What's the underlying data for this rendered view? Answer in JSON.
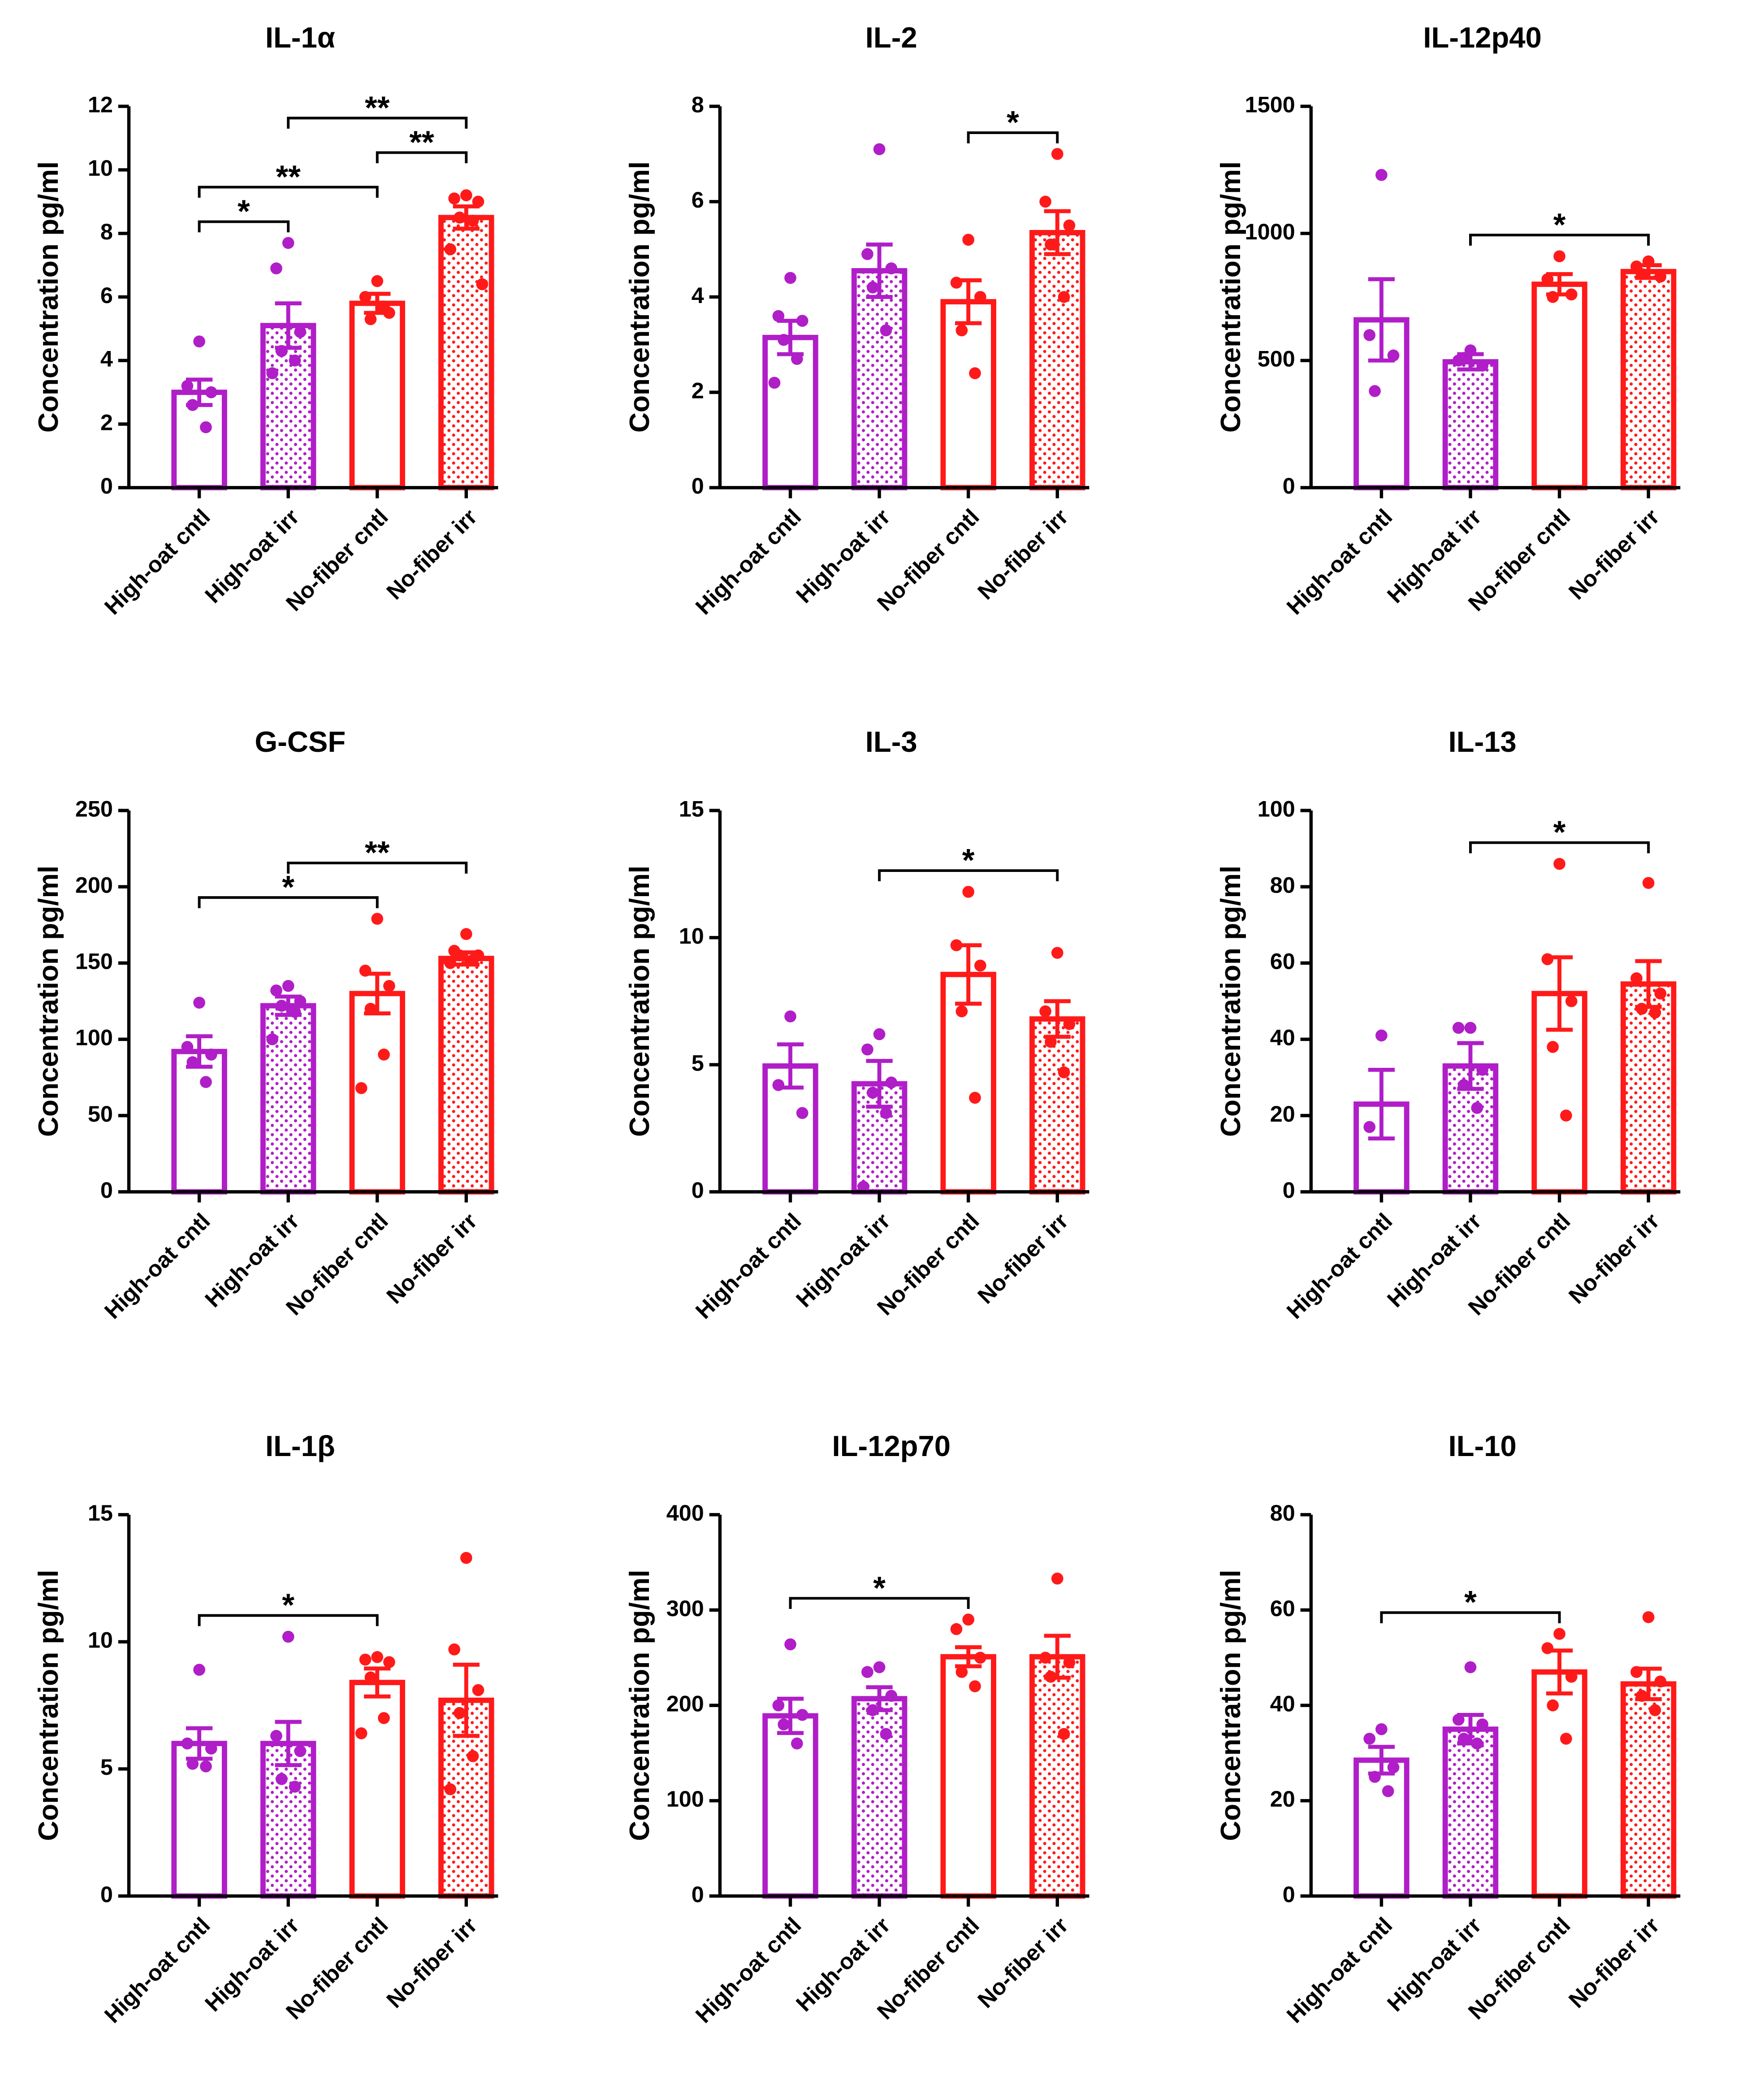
{
  "chart_data": [
    {
      "type": "bar",
      "title": "IL-1α",
      "ylabel": "Concentration pg/ml",
      "categories": [
        "High-oat cntl",
        "High-oat irr",
        "No-fiber cntl",
        "No-fiber irr"
      ],
      "values": [
        3.0,
        5.1,
        5.8,
        8.5
      ],
      "errors": [
        0.4,
        0.7,
        0.3,
        0.35
      ],
      "points": [
        [
          4.6,
          3.2,
          3.0,
          2.6,
          1.9
        ],
        [
          7.7,
          6.9,
          4.9,
          4.3,
          4.0,
          3.6
        ],
        [
          6.5,
          6.0,
          5.5,
          5.3,
          5.7
        ],
        [
          9.2,
          9.1,
          9.0,
          8.5,
          8.4,
          7.5,
          6.4
        ]
      ],
      "colors": [
        "#b01ec8",
        "#b01ec8",
        "#ff1a1a",
        "#ff1a1a"
      ],
      "dotted": [
        false,
        true,
        false,
        true
      ],
      "ylim": [
        0,
        12
      ],
      "yticks": [
        0,
        2,
        4,
        6,
        8,
        10,
        12
      ],
      "significance": [
        {
          "from": 0,
          "to": 1,
          "label": "*"
        },
        {
          "from": 0,
          "to": 2,
          "label": "**"
        },
        {
          "from": 2,
          "to": 3,
          "label": "**"
        },
        {
          "from": 1,
          "to": 3,
          "label": "**"
        }
      ]
    },
    {
      "type": "bar",
      "title": "IL-2",
      "ylabel": "Concentration pg/ml",
      "categories": [
        "High-oat cntl",
        "High-oat irr",
        "No-fiber cntl",
        "No-fiber irr"
      ],
      "values": [
        3.15,
        4.55,
        3.9,
        5.35
      ],
      "errors": [
        0.35,
        0.55,
        0.45,
        0.45
      ],
      "points": [
        [
          4.4,
          3.6,
          3.5,
          3.1,
          2.7,
          2.2
        ],
        [
          7.1,
          4.9,
          4.6,
          4.2,
          3.3
        ],
        [
          5.2,
          4.3,
          4.0,
          3.3,
          2.4
        ],
        [
          7.0,
          6.0,
          5.5,
          5.1,
          4.0
        ]
      ],
      "colors": [
        "#b01ec8",
        "#b01ec8",
        "#ff1a1a",
        "#ff1a1a"
      ],
      "dotted": [
        false,
        true,
        false,
        true
      ],
      "ylim": [
        0,
        8
      ],
      "yticks": [
        0,
        2,
        4,
        6,
        8
      ],
      "significance": [
        {
          "from": 2,
          "to": 3,
          "label": "*"
        }
      ]
    },
    {
      "type": "bar",
      "title": "IL-12p40",
      "ylabel": "Concentration pg/ml",
      "categories": [
        "High-oat cntl",
        "High-oat irr",
        "No-fiber cntl",
        "No-fiber irr"
      ],
      "values": [
        660,
        495,
        800,
        850
      ],
      "errors": [
        160,
        30,
        40,
        25
      ],
      "points": [
        [
          1230,
          600,
          520,
          380
        ],
        [
          540,
          500,
          480,
          510
        ],
        [
          910,
          820,
          760,
          750
        ],
        [
          890,
          870,
          830,
          840
        ]
      ],
      "colors": [
        "#b01ec8",
        "#b01ec8",
        "#ff1a1a",
        "#ff1a1a"
      ],
      "dotted": [
        false,
        true,
        false,
        true
      ],
      "ylim": [
        0,
        1500
      ],
      "yticks": [
        0,
        500,
        1000,
        1500
      ],
      "significance": [
        {
          "from": 1,
          "to": 3,
          "label": "*"
        }
      ]
    },
    {
      "type": "bar",
      "title": "G-CSF",
      "ylabel": "Concentration pg/ml",
      "categories": [
        "High-oat cntl",
        "High-oat irr",
        "No-fiber cntl",
        "No-fiber irr"
      ],
      "values": [
        92,
        122,
        130,
        153
      ],
      "errors": [
        10,
        6,
        13,
        4
      ],
      "points": [
        [
          124,
          95,
          90,
          85,
          72
        ],
        [
          135,
          132,
          125,
          122,
          118,
          100
        ],
        [
          179,
          145,
          135,
          120,
          90,
          68
        ],
        [
          169,
          158,
          155,
          155,
          152,
          150
        ]
      ],
      "colors": [
        "#b01ec8",
        "#b01ec8",
        "#ff1a1a",
        "#ff1a1a"
      ],
      "dotted": [
        false,
        true,
        false,
        true
      ],
      "ylim": [
        0,
        250
      ],
      "yticks": [
        0,
        50,
        100,
        150,
        200,
        250
      ],
      "significance": [
        {
          "from": 0,
          "to": 2,
          "label": "*"
        },
        {
          "from": 1,
          "to": 3,
          "label": "**"
        }
      ]
    },
    {
      "type": "bar",
      "title": "IL-3",
      "ylabel": "Concentration pg/ml",
      "categories": [
        "High-oat cntl",
        "High-oat irr",
        "No-fiber cntl",
        "No-fiber irr"
      ],
      "values": [
        4.95,
        4.25,
        8.55,
        6.8
      ],
      "errors": [
        0.85,
        0.9,
        1.15,
        0.7
      ],
      "points": [
        [
          6.9,
          4.2,
          3.1
        ],
        [
          6.2,
          5.6,
          4.3,
          3.9,
          3.1,
          0.2
        ],
        [
          11.8,
          9.7,
          8.9,
          7.1,
          3.7
        ],
        [
          9.4,
          7.1,
          6.6,
          5.9,
          4.7
        ]
      ],
      "colors": [
        "#b01ec8",
        "#b01ec8",
        "#ff1a1a",
        "#ff1a1a"
      ],
      "dotted": [
        false,
        true,
        false,
        true
      ],
      "ylim": [
        0,
        15
      ],
      "yticks": [
        0,
        5,
        10,
        15
      ],
      "significance": [
        {
          "from": 1,
          "to": 3,
          "label": "*"
        }
      ]
    },
    {
      "type": "bar",
      "title": "IL-13",
      "ylabel": "Concentration pg/ml",
      "categories": [
        "High-oat cntl",
        "High-oat irr",
        "No-fiber cntl",
        "No-fiber irr"
      ],
      "values": [
        23,
        33,
        52,
        54.5
      ],
      "errors": [
        9,
        6,
        9.5,
        6
      ],
      "points": [
        [
          41,
          17
        ],
        [
          43,
          43,
          32,
          28,
          22
        ],
        [
          86,
          61,
          50,
          38,
          20
        ],
        [
          81,
          56,
          52,
          48,
          47
        ]
      ],
      "colors": [
        "#b01ec8",
        "#b01ec8",
        "#ff1a1a",
        "#ff1a1a"
      ],
      "dotted": [
        false,
        true,
        false,
        true
      ],
      "ylim": [
        0,
        100
      ],
      "yticks": [
        0,
        20,
        40,
        60,
        80,
        100
      ],
      "significance": [
        {
          "from": 1,
          "to": 3,
          "label": "*"
        }
      ]
    },
    {
      "type": "bar",
      "title": "IL-1β",
      "ylabel": "Concentration pg/ml",
      "categories": [
        "High-oat cntl",
        "High-oat irr",
        "No-fiber cntl",
        "No-fiber irr"
      ],
      "values": [
        6.0,
        6.0,
        8.4,
        7.7
      ],
      "errors": [
        0.6,
        0.85,
        0.55,
        1.4
      ],
      "points": [
        [
          8.9,
          6.0,
          5.8,
          5.2,
          5.1
        ],
        [
          10.2,
          6.3,
          5.7,
          4.6,
          4.3
        ],
        [
          9.4,
          9.3,
          9.2,
          8.6,
          7.0,
          6.4
        ],
        [
          13.3,
          9.7,
          8.1,
          7.2,
          5.5,
          4.2
        ]
      ],
      "colors": [
        "#b01ec8",
        "#b01ec8",
        "#ff1a1a",
        "#ff1a1a"
      ],
      "dotted": [
        false,
        true,
        false,
        true
      ],
      "ylim": [
        0,
        15
      ],
      "yticks": [
        0,
        5,
        10,
        15
      ],
      "significance": [
        {
          "from": 0,
          "to": 2,
          "label": "*"
        }
      ]
    },
    {
      "type": "bar",
      "title": "IL-12p70",
      "ylabel": "Concentration pg/ml",
      "categories": [
        "High-oat cntl",
        "High-oat irr",
        "No-fiber cntl",
        "No-fiber irr"
      ],
      "values": [
        189,
        207,
        251,
        251
      ],
      "errors": [
        18,
        12,
        10,
        22
      ],
      "points": [
        [
          264,
          200,
          190,
          180,
          160
        ],
        [
          240,
          235,
          210,
          195,
          170
        ],
        [
          290,
          280,
          250,
          235,
          220
        ],
        [
          333,
          250,
          245,
          230,
          170
        ]
      ],
      "colors": [
        "#b01ec8",
        "#b01ec8",
        "#ff1a1a",
        "#ff1a1a"
      ],
      "dotted": [
        false,
        true,
        false,
        true
      ],
      "ylim": [
        0,
        400
      ],
      "yticks": [
        0,
        100,
        200,
        300,
        400
      ],
      "significance": [
        {
          "from": 0,
          "to": 2,
          "label": "*"
        }
      ]
    },
    {
      "type": "bar",
      "title": "IL-10",
      "ylabel": "Concentration pg/ml",
      "categories": [
        "High-oat cntl",
        "High-oat irr",
        "No-fiber cntl",
        "No-fiber irr"
      ],
      "values": [
        28.5,
        35,
        47,
        44.5
      ],
      "errors": [
        2.8,
        3,
        4.5,
        3.2
      ],
      "points": [
        [
          35,
          33,
          27,
          25,
          22
        ],
        [
          48,
          37,
          36,
          33,
          32
        ],
        [
          55,
          52,
          46,
          40,
          33
        ],
        [
          58.5,
          47,
          45,
          42,
          39
        ]
      ],
      "colors": [
        "#b01ec8",
        "#b01ec8",
        "#ff1a1a",
        "#ff1a1a"
      ],
      "dotted": [
        false,
        true,
        false,
        true
      ],
      "ylim": [
        0,
        80
      ],
      "yticks": [
        0,
        20,
        40,
        60,
        80
      ],
      "significance": [
        {
          "from": 0,
          "to": 2,
          "label": "*"
        }
      ]
    }
  ]
}
